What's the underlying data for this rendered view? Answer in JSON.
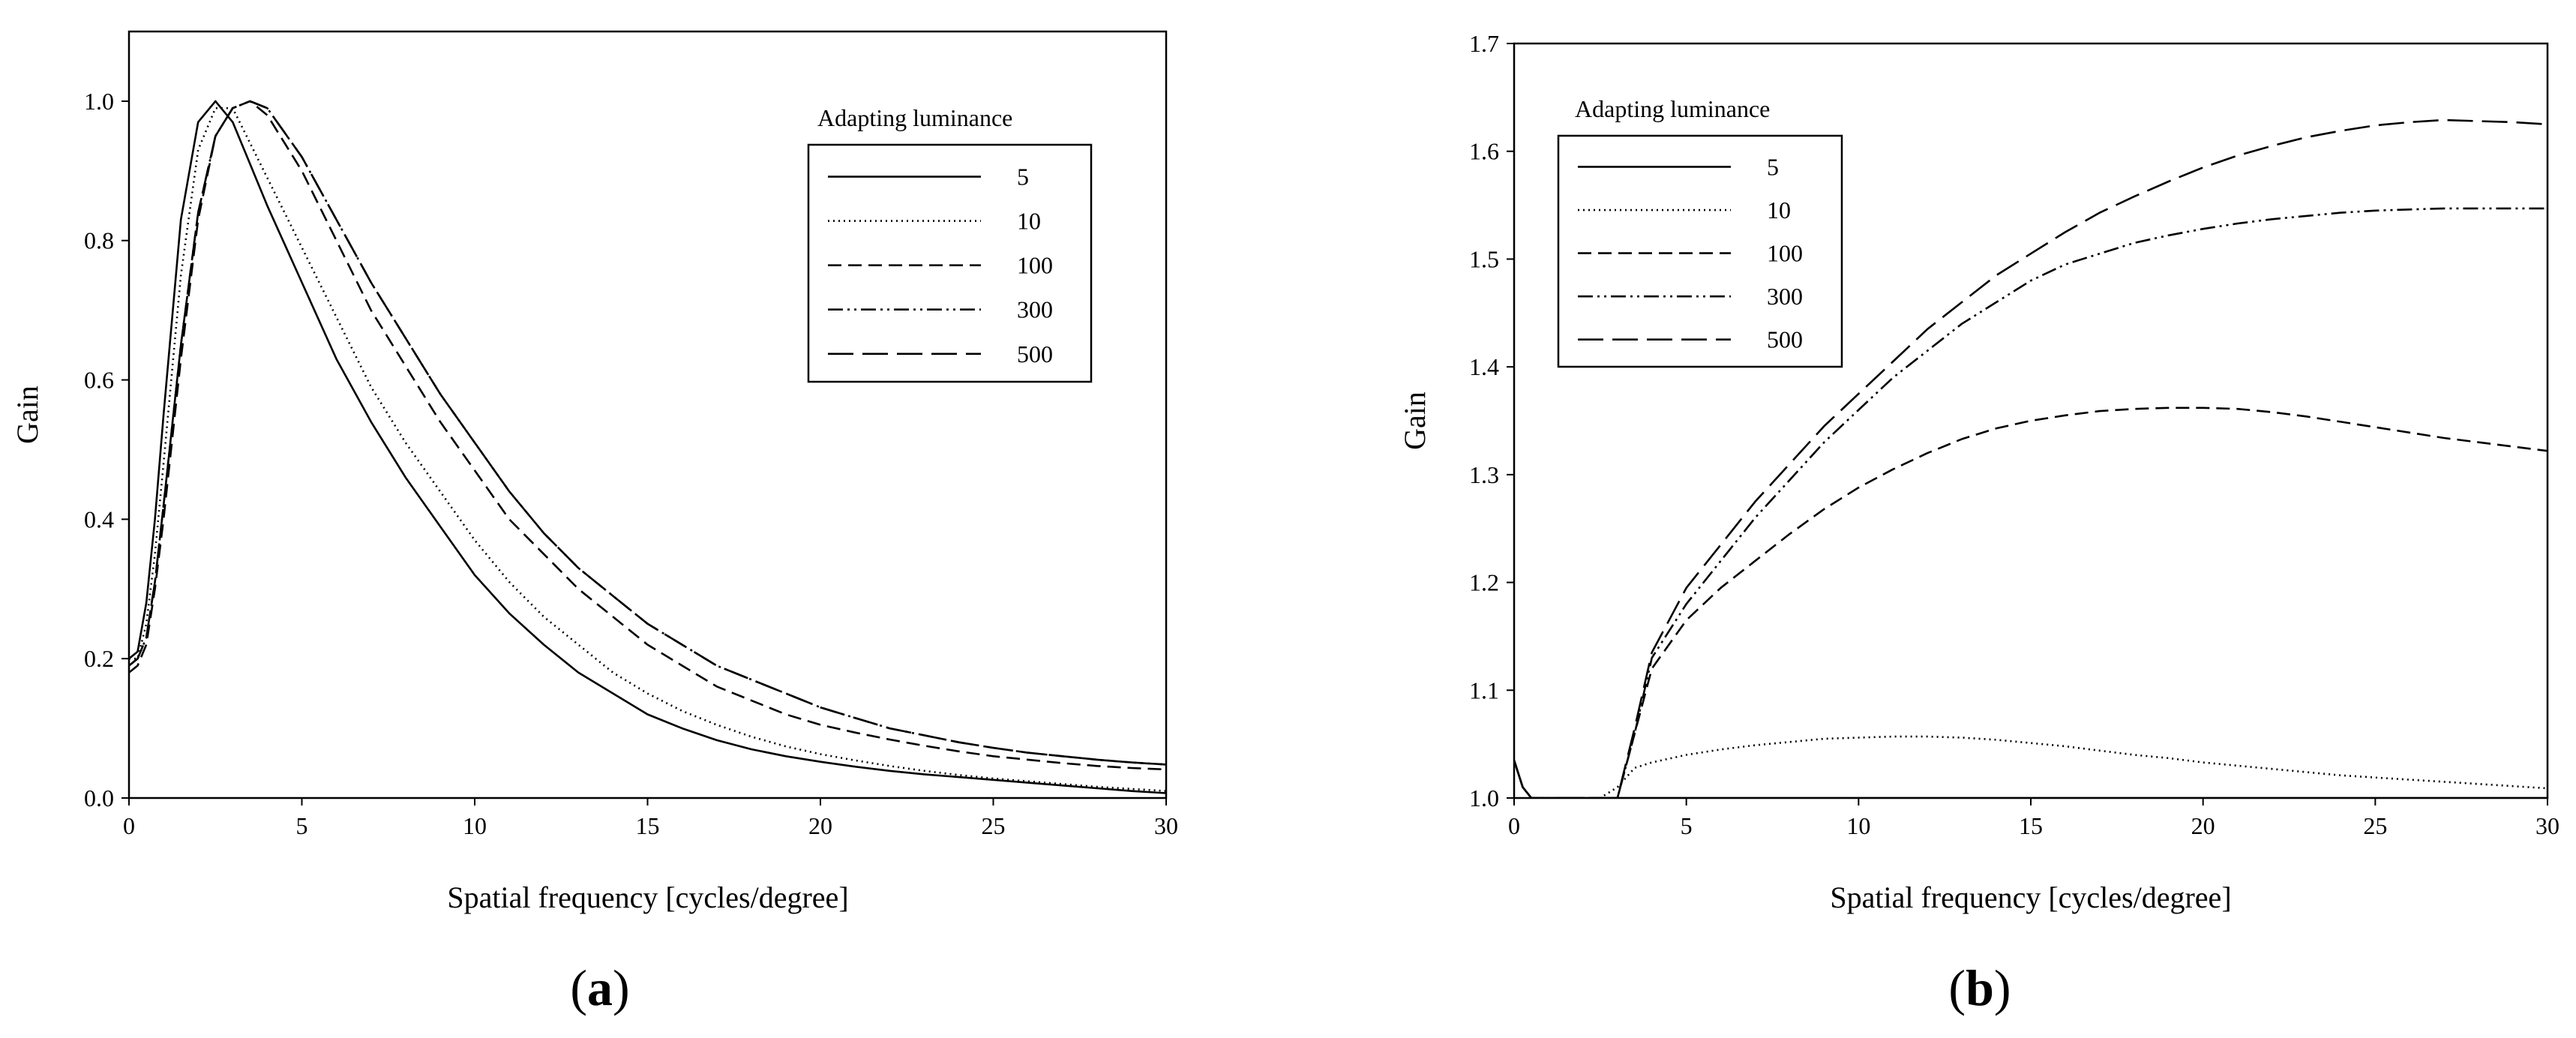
{
  "chart_data": [
    {
      "type": "line",
      "panel_label": {
        "open": "(",
        "letter": "a",
        "close": ")"
      },
      "xlabel": "Spatial frequency [cycles/degree]",
      "ylabel": "Gain",
      "xlim": [
        0,
        30
      ],
      "ylim": [
        0,
        1.1
      ],
      "xticks": [
        0,
        5,
        10,
        15,
        20,
        25,
        30
      ],
      "yticks": [
        0.0,
        0.2,
        0.4,
        0.6,
        0.8,
        1.0
      ],
      "ytick_labels": [
        "0.0",
        "0.2",
        "0.4",
        "0.6",
        "0.8",
        "1.0"
      ],
      "legend": {
        "title": "Adapting luminance",
        "position": "top-right"
      },
      "x": [
        0,
        0.25,
        0.5,
        0.75,
        1,
        1.5,
        2,
        2.5,
        3,
        3.5,
        4,
        5,
        6,
        7,
        8,
        9,
        10,
        11,
        12,
        13,
        14,
        15,
        16,
        17,
        18,
        19,
        20,
        21,
        22,
        23,
        24,
        25,
        26,
        27,
        28,
        29,
        30
      ],
      "series": [
        {
          "name": "5",
          "style": "solid",
          "values": [
            0.2,
            0.21,
            0.28,
            0.4,
            0.55,
            0.83,
            0.97,
            1.0,
            0.97,
            0.91,
            0.85,
            0.74,
            0.63,
            0.54,
            0.46,
            0.39,
            0.32,
            0.265,
            0.22,
            0.18,
            0.15,
            0.12,
            0.1,
            0.083,
            0.07,
            0.06,
            0.052,
            0.045,
            0.039,
            0.034,
            0.03,
            0.026,
            0.022,
            0.018,
            0.014,
            0.01,
            0.007
          ]
        },
        {
          "name": "10",
          "style": "dotted",
          "values": [
            0.2,
            0.2,
            0.25,
            0.35,
            0.48,
            0.75,
            0.93,
            0.99,
            0.99,
            0.94,
            0.89,
            0.79,
            0.69,
            0.59,
            0.51,
            0.44,
            0.37,
            0.31,
            0.26,
            0.22,
            0.18,
            0.15,
            0.125,
            0.105,
            0.088,
            0.074,
            0.063,
            0.054,
            0.046,
            0.039,
            0.033,
            0.028,
            0.024,
            0.02,
            0.016,
            0.013,
            0.01
          ]
        },
        {
          "name": "100",
          "style": "dashed",
          "values": [
            0.18,
            0.19,
            0.22,
            0.3,
            0.4,
            0.63,
            0.83,
            0.95,
            0.99,
            1.0,
            0.98,
            0.9,
            0.8,
            0.7,
            0.62,
            0.54,
            0.47,
            0.4,
            0.35,
            0.3,
            0.26,
            0.22,
            0.19,
            0.16,
            0.14,
            0.12,
            0.105,
            0.094,
            0.084,
            0.075,
            0.067,
            0.06,
            0.055,
            0.05,
            0.046,
            0.043,
            0.041
          ]
        },
        {
          "name": "300",
          "style": "dash-dot-dot",
          "values": [
            0.19,
            0.2,
            0.23,
            0.31,
            0.42,
            0.65,
            0.84,
            0.95,
            0.99,
            1.0,
            0.99,
            0.92,
            0.83,
            0.74,
            0.66,
            0.58,
            0.51,
            0.44,
            0.38,
            0.33,
            0.29,
            0.25,
            0.22,
            0.19,
            0.17,
            0.15,
            0.13,
            0.115,
            0.1,
            0.09,
            0.08,
            0.072,
            0.065,
            0.06,
            0.055,
            0.051,
            0.048
          ]
        },
        {
          "name": "500",
          "style": "long-dash",
          "values": [
            0.19,
            0.2,
            0.23,
            0.31,
            0.42,
            0.65,
            0.84,
            0.95,
            0.99,
            1.0,
            0.99,
            0.92,
            0.83,
            0.74,
            0.66,
            0.58,
            0.51,
            0.44,
            0.38,
            0.33,
            0.29,
            0.25,
            0.22,
            0.19,
            0.17,
            0.15,
            0.13,
            0.115,
            0.1,
            0.09,
            0.08,
            0.072,
            0.065,
            0.06,
            0.055,
            0.051,
            0.048
          ]
        }
      ]
    },
    {
      "type": "line",
      "panel_label": {
        "open": "(",
        "letter": "b",
        "close": ")"
      },
      "xlabel": "Spatial frequency [cycles/degree]",
      "ylabel": "Gain",
      "xlim": [
        0,
        30
      ],
      "ylim": [
        1.0,
        1.7
      ],
      "xticks": [
        0,
        5,
        10,
        15,
        20,
        25,
        30
      ],
      "yticks": [
        1.0,
        1.1,
        1.2,
        1.3,
        1.4,
        1.5,
        1.6,
        1.7
      ],
      "ytick_labels": [
        "1.0",
        "1.1",
        "1.2",
        "1.3",
        "1.4",
        "1.5",
        "1.6",
        "1.7"
      ],
      "legend": {
        "title": "Adapting luminance",
        "position": "top-left"
      },
      "x": [
        0,
        0.25,
        0.5,
        0.75,
        1,
        1.5,
        2,
        2.5,
        3,
        3.5,
        4,
        5,
        6,
        7,
        8,
        9,
        10,
        11,
        12,
        13,
        14,
        15,
        16,
        17,
        18,
        19,
        20,
        21,
        22,
        23,
        24,
        25,
        26,
        27,
        28,
        29,
        30
      ],
      "series": [
        {
          "name": "5",
          "style": "solid",
          "values": [
            1.035,
            1.01,
            1.0,
            1.0,
            1.0,
            1.0,
            1.0,
            1.0,
            1.0,
            1.0,
            1.0,
            1.0,
            1.0,
            1.0,
            1.0,
            1.0,
            1.0,
            1.0,
            1.0,
            1.0,
            1.0,
            1.0,
            1.0,
            1.0,
            1.0,
            1.0,
            1.0,
            1.0,
            1.0,
            1.0,
            1.0,
            1.0,
            1.0,
            1.0,
            1.0,
            1.0,
            1.0
          ]
        },
        {
          "name": "10",
          "style": "dotted",
          "values": [
            1.035,
            1.01,
            1.0,
            1.0,
            1.0,
            1.0,
            1.0,
            1.0,
            1.01,
            1.028,
            1.033,
            1.04,
            1.045,
            1.049,
            1.052,
            1.055,
            1.056,
            1.057,
            1.057,
            1.056,
            1.054,
            1.051,
            1.048,
            1.044,
            1.04,
            1.037,
            1.033,
            1.03,
            1.027,
            1.024,
            1.021,
            1.019,
            1.017,
            1.015,
            1.013,
            1.011,
            1.009
          ]
        },
        {
          "name": "100",
          "style": "dashed",
          "values": [
            1.035,
            1.01,
            1.0,
            1.0,
            1.0,
            1.0,
            1.0,
            1.0,
            1.0,
            1.06,
            1.12,
            1.165,
            1.195,
            1.22,
            1.245,
            1.268,
            1.288,
            1.305,
            1.32,
            1.333,
            1.343,
            1.35,
            1.355,
            1.359,
            1.361,
            1.362,
            1.362,
            1.361,
            1.358,
            1.354,
            1.349,
            1.344,
            1.339,
            1.334,
            1.33,
            1.326,
            1.322
          ]
        },
        {
          "name": "300",
          "style": "dash-dot-dot",
          "values": [
            1.035,
            1.01,
            1.0,
            1.0,
            1.0,
            1.0,
            1.0,
            1.0,
            1.0,
            1.06,
            1.13,
            1.18,
            1.22,
            1.26,
            1.295,
            1.33,
            1.36,
            1.39,
            1.415,
            1.44,
            1.46,
            1.48,
            1.495,
            1.505,
            1.515,
            1.522,
            1.528,
            1.533,
            1.537,
            1.54,
            1.543,
            1.545,
            1.546,
            1.547,
            1.547,
            1.547,
            1.547
          ]
        },
        {
          "name": "500",
          "style": "long-dash",
          "values": [
            1.035,
            1.01,
            1.0,
            1.0,
            1.0,
            1.0,
            1.0,
            1.0,
            1.0,
            1.065,
            1.135,
            1.195,
            1.235,
            1.275,
            1.31,
            1.345,
            1.375,
            1.405,
            1.435,
            1.46,
            1.485,
            1.505,
            1.525,
            1.543,
            1.558,
            1.572,
            1.585,
            1.596,
            1.605,
            1.613,
            1.619,
            1.624,
            1.627,
            1.629,
            1.628,
            1.627,
            1.625
          ]
        }
      ]
    }
  ]
}
